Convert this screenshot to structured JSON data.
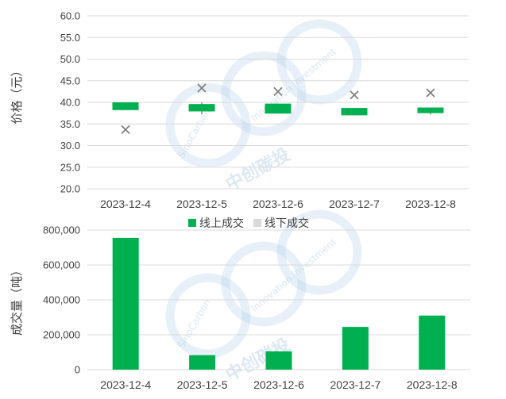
{
  "colors": {
    "online": "#00b050",
    "offline": "#d9d9d9",
    "grid": "#d9d9d9",
    "marker": "#7f7f7f",
    "watermark": "#a9c8e6"
  },
  "watermark": {
    "cn": "中创碳投",
    "en_left": "SinoCarbon",
    "en_right": "Innovation Investment"
  },
  "chart_data": [
    {
      "type": "bar",
      "subtype": "floating-range-with-markers",
      "ylabel": "价格（元）",
      "ylim": [
        20,
        60
      ],
      "yticks": [
        "20.0",
        "25.0",
        "30.0",
        "35.0",
        "40.0",
        "45.0",
        "50.0",
        "55.0",
        "60.0"
      ],
      "ytick_values": [
        20,
        25,
        30,
        35,
        40,
        45,
        50,
        55,
        60
      ],
      "categories": [
        "2023-12-4",
        "2023-12-5",
        "2023-12-6",
        "2023-12-7",
        "2023-12-8"
      ],
      "series": [
        {
          "name": "线上成交",
          "ranges": [
            [
              38.2,
              40.0
            ],
            [
              37.9,
              39.6
            ],
            [
              37.4,
              39.7
            ],
            [
              37.0,
              38.7
            ],
            [
              37.5,
              38.8
            ]
          ],
          "whisker_low": [
            38.2,
            37.2,
            37.4,
            37.0,
            37.2
          ],
          "whisker_high": [
            40.0,
            40.0,
            39.7,
            38.7,
            38.8
          ]
        },
        {
          "name": "线下成交",
          "markers": [
            33.7,
            43.3,
            42.5,
            41.7,
            42.2
          ]
        }
      ],
      "grid": true,
      "legend_placement": "bottom"
    },
    {
      "type": "bar",
      "ylabel": "成交量（吨）",
      "ylim": [
        0,
        800000
      ],
      "yticks": [
        "0",
        "200,000",
        "400,000",
        "600,000",
        "800,000"
      ],
      "ytick_values": [
        0,
        200000,
        400000,
        600000,
        800000
      ],
      "categories": [
        "2023-12-4",
        "2023-12-5",
        "2023-12-6",
        "2023-12-7",
        "2023-12-8"
      ],
      "series": [
        {
          "name": "线上成交",
          "values": [
            755000,
            83000,
            105000,
            245000,
            310000
          ]
        }
      ],
      "grid": true
    }
  ]
}
